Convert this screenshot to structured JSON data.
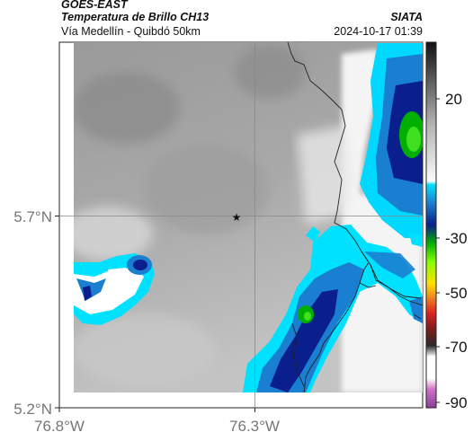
{
  "header": {
    "satellite": "GOES-EAST",
    "product": "Temperatura de Brillo CH13",
    "region": "Vía Medellín - Quibdó 50km",
    "organization": "SIATA",
    "datetime": "2024-10-17 01:39"
  },
  "axes": {
    "x_ticks": [
      "76.8°W",
      "76.3°W"
    ],
    "y_ticks": [
      "5.7°N",
      "5.2°N"
    ]
  },
  "colorbar": {
    "ticks": [
      "20",
      "-30",
      "-50",
      "-70",
      "-90"
    ]
  },
  "marker": {
    "symbol": "★"
  }
}
